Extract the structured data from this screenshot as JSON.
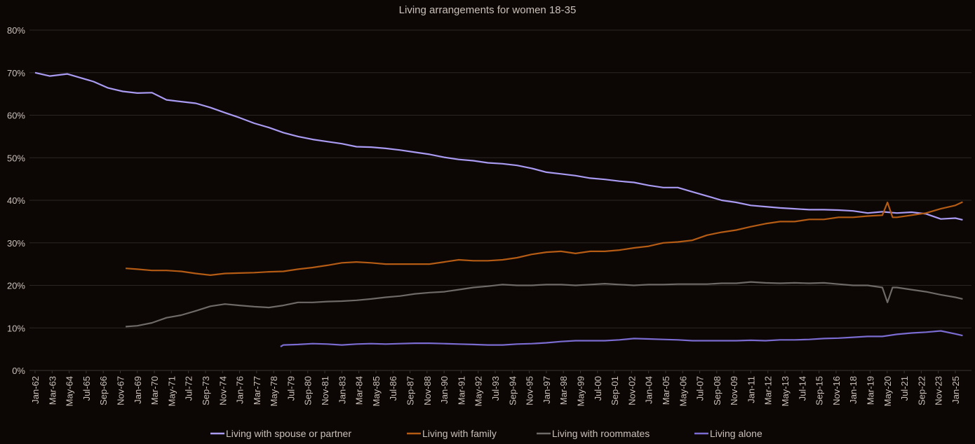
{
  "chart_data": {
    "type": "line",
    "title": "Living arrangements for women 18-35",
    "xlabel": "",
    "ylabel": "",
    "ylim": [
      0,
      80
    ],
    "yticks": [
      "0%",
      "10%",
      "20%",
      "30%",
      "40%",
      "50%",
      "60%",
      "70%",
      "80%"
    ],
    "xticks": [
      "Jan-62",
      "Mar-63",
      "May-64",
      "Jul-65",
      "Sep-66",
      "Nov-67",
      "Jan-69",
      "Mar-70",
      "May-71",
      "Jul-72",
      "Sep-73",
      "Nov-74",
      "Jan-76",
      "Mar-77",
      "May-78",
      "Jul-79",
      "Sep-80",
      "Nov-81",
      "Jan-83",
      "Mar-84",
      "May-85",
      "Jul-86",
      "Sep-87",
      "Nov-88",
      "Jan-90",
      "Mar-91",
      "May-92",
      "Jul-93",
      "Sep-94",
      "Nov-95",
      "Jan-97",
      "Mar-98",
      "May-99",
      "Jul-00",
      "Sep-01",
      "Nov-02",
      "Jan-04",
      "Mar-05",
      "May-06",
      "Jul-07",
      "Sep-08",
      "Nov-09",
      "Jan-11",
      "Mar-12",
      "May-13",
      "Jul-14",
      "Sep-15",
      "Nov-16",
      "Jan-18",
      "Mar-19",
      "May-20",
      "Jul-21",
      "Sep-22",
      "Nov-23",
      "Jan-25"
    ],
    "grid": true,
    "legend_position": "bottom",
    "series": [
      {
        "name": "Living with spouse or partner",
        "color": "#a99bf2",
        "points": [
          [
            1962,
            70
          ],
          [
            1963,
            69.2
          ],
          [
            1964.2,
            69.7
          ],
          [
            1965,
            68.9
          ],
          [
            1966,
            67.9
          ],
          [
            1967,
            66.4
          ],
          [
            1968,
            65.6
          ],
          [
            1969,
            65.2
          ],
          [
            1970,
            65.3
          ],
          [
            1971,
            63.6
          ],
          [
            1972,
            63.2
          ],
          [
            1973,
            62.8
          ],
          [
            1974,
            61.8
          ],
          [
            1975,
            60.6
          ],
          [
            1976,
            59.4
          ],
          [
            1977,
            58.1
          ],
          [
            1978,
            57.1
          ],
          [
            1979,
            55.9
          ],
          [
            1980,
            55
          ],
          [
            1981,
            54.3
          ],
          [
            1982,
            53.8
          ],
          [
            1983,
            53.3
          ],
          [
            1984,
            52.6
          ],
          [
            1985,
            52.5
          ],
          [
            1986,
            52.2
          ],
          [
            1987,
            51.8
          ],
          [
            1988,
            51.3
          ],
          [
            1989,
            50.8
          ],
          [
            1990,
            50.1
          ],
          [
            1991,
            49.6
          ],
          [
            1992,
            49.3
          ],
          [
            1993,
            48.8
          ],
          [
            1994,
            48.6
          ],
          [
            1995,
            48.2
          ],
          [
            1996,
            47.5
          ],
          [
            1997,
            46.6
          ],
          [
            1998,
            46.2
          ],
          [
            1999,
            45.8
          ],
          [
            2000,
            45.2
          ],
          [
            2001,
            44.9
          ],
          [
            2002,
            44.5
          ],
          [
            2003,
            44.2
          ],
          [
            2004,
            43.5
          ],
          [
            2005,
            43
          ],
          [
            2006,
            43
          ],
          [
            2007,
            42
          ],
          [
            2008,
            41
          ],
          [
            2009,
            40
          ],
          [
            2010,
            39.5
          ],
          [
            2011,
            38.8
          ],
          [
            2012,
            38.5
          ],
          [
            2013,
            38.2
          ],
          [
            2014,
            38
          ],
          [
            2015,
            37.8
          ],
          [
            2016,
            37.8
          ],
          [
            2017,
            37.7
          ],
          [
            2018,
            37.5
          ],
          [
            2019,
            37
          ],
          [
            2020,
            37.3
          ],
          [
            2021,
            37
          ],
          [
            2022,
            37.2
          ],
          [
            2023,
            36.8
          ],
          [
            2024,
            35.6
          ],
          [
            2025,
            35.8
          ],
          [
            2025.5,
            35.4
          ]
        ]
      },
      {
        "name": "Living with family",
        "color": "#b45b14",
        "points": [
          [
            1968.2,
            24
          ],
          [
            1969,
            23.8
          ],
          [
            1970,
            23.5
          ],
          [
            1971,
            23.5
          ],
          [
            1972,
            23.3
          ],
          [
            1973,
            22.8
          ],
          [
            1974,
            22.4
          ],
          [
            1975,
            22.8
          ],
          [
            1976,
            22.9
          ],
          [
            1977,
            23
          ],
          [
            1978,
            23.2
          ],
          [
            1979,
            23.3
          ],
          [
            1980,
            23.8
          ],
          [
            1981,
            24.2
          ],
          [
            1982,
            24.7
          ],
          [
            1983,
            25.3
          ],
          [
            1984,
            25.5
          ],
          [
            1985,
            25.3
          ],
          [
            1986,
            25
          ],
          [
            1987,
            25
          ],
          [
            1988,
            25
          ],
          [
            1989,
            25
          ],
          [
            1990,
            25.5
          ],
          [
            1991,
            26
          ],
          [
            1992,
            25.8
          ],
          [
            1993,
            25.8
          ],
          [
            1994,
            26
          ],
          [
            1995,
            26.5
          ],
          [
            1996,
            27.3
          ],
          [
            1997,
            27.8
          ],
          [
            1998,
            28
          ],
          [
            1999,
            27.5
          ],
          [
            2000,
            28
          ],
          [
            2001,
            28
          ],
          [
            2002,
            28.3
          ],
          [
            2003,
            28.8
          ],
          [
            2004,
            29.2
          ],
          [
            2005,
            30
          ],
          [
            2006,
            30.2
          ],
          [
            2007,
            30.6
          ],
          [
            2008,
            31.8
          ],
          [
            2009,
            32.5
          ],
          [
            2010,
            33
          ],
          [
            2011,
            33.8
          ],
          [
            2012,
            34.5
          ],
          [
            2013,
            35
          ],
          [
            2014,
            35
          ],
          [
            2015,
            35.5
          ],
          [
            2016,
            35.5
          ],
          [
            2017,
            36
          ],
          [
            2018,
            36
          ],
          [
            2019,
            36.3
          ],
          [
            2020,
            36.5
          ],
          [
            2020.35,
            39.5
          ],
          [
            2020.7,
            36
          ],
          [
            2021,
            36
          ],
          [
            2022,
            36.5
          ],
          [
            2023,
            37
          ],
          [
            2024,
            38
          ],
          [
            2025,
            38.8
          ],
          [
            2025.5,
            39.6
          ]
        ]
      },
      {
        "name": "Living with roommates",
        "color": "#6e6a68",
        "points": [
          [
            1968.2,
            10.3
          ],
          [
            1969,
            10.5
          ],
          [
            1970,
            11.2
          ],
          [
            1971,
            12.4
          ],
          [
            1972,
            13
          ],
          [
            1973,
            14
          ],
          [
            1974,
            15.1
          ],
          [
            1975,
            15.6
          ],
          [
            1976,
            15.3
          ],
          [
            1977,
            15
          ],
          [
            1978,
            14.8
          ],
          [
            1979,
            15.3
          ],
          [
            1980,
            16
          ],
          [
            1981,
            16
          ],
          [
            1982,
            16.2
          ],
          [
            1983,
            16.3
          ],
          [
            1984,
            16.5
          ],
          [
            1985,
            16.8
          ],
          [
            1986,
            17.2
          ],
          [
            1987,
            17.5
          ],
          [
            1988,
            18
          ],
          [
            1989,
            18.3
          ],
          [
            1990,
            18.5
          ],
          [
            1991,
            19
          ],
          [
            1992,
            19.5
          ],
          [
            1993,
            19.8
          ],
          [
            1994,
            20.2
          ],
          [
            1995,
            20
          ],
          [
            1996,
            20
          ],
          [
            1997,
            20.2
          ],
          [
            1998,
            20.2
          ],
          [
            1999,
            20
          ],
          [
            2000,
            20.2
          ],
          [
            2001,
            20.4
          ],
          [
            2002,
            20.2
          ],
          [
            2003,
            20
          ],
          [
            2004,
            20.2
          ],
          [
            2005,
            20.2
          ],
          [
            2006,
            20.3
          ],
          [
            2007,
            20.3
          ],
          [
            2008,
            20.3
          ],
          [
            2009,
            20.5
          ],
          [
            2010,
            20.5
          ],
          [
            2011,
            20.8
          ],
          [
            2012,
            20.6
          ],
          [
            2013,
            20.5
          ],
          [
            2014,
            20.6
          ],
          [
            2015,
            20.5
          ],
          [
            2016,
            20.6
          ],
          [
            2017,
            20.3
          ],
          [
            2018,
            20
          ],
          [
            2019,
            20
          ],
          [
            2020,
            19.5
          ],
          [
            2020.35,
            16
          ],
          [
            2020.7,
            19.5
          ],
          [
            2021,
            19.5
          ],
          [
            2022,
            19
          ],
          [
            2023,
            18.5
          ],
          [
            2024,
            17.8
          ],
          [
            2025,
            17.2
          ],
          [
            2025.5,
            16.8
          ]
        ]
      },
      {
        "name": "Living alone",
        "color": "#7a6cd0",
        "points": [
          [
            1978.8,
            5.6
          ],
          [
            1979,
            6
          ],
          [
            1980,
            6.1
          ],
          [
            1981,
            6.3
          ],
          [
            1982,
            6.2
          ],
          [
            1983,
            6
          ],
          [
            1984,
            6.2
          ],
          [
            1985,
            6.3
          ],
          [
            1986,
            6.2
          ],
          [
            1987,
            6.3
          ],
          [
            1988,
            6.4
          ],
          [
            1989,
            6.4
          ],
          [
            1990,
            6.3
          ],
          [
            1991,
            6.2
          ],
          [
            1992,
            6.1
          ],
          [
            1993,
            6
          ],
          [
            1994,
            6
          ],
          [
            1995,
            6.2
          ],
          [
            1996,
            6.3
          ],
          [
            1997,
            6.5
          ],
          [
            1998,
            6.8
          ],
          [
            1999,
            7
          ],
          [
            2000,
            7
          ],
          [
            2001,
            7
          ],
          [
            2002,
            7.2
          ],
          [
            2003,
            7.5
          ],
          [
            2004,
            7.4
          ],
          [
            2005,
            7.3
          ],
          [
            2006,
            7.2
          ],
          [
            2007,
            7
          ],
          [
            2008,
            7
          ],
          [
            2009,
            7
          ],
          [
            2010,
            7
          ],
          [
            2011,
            7.1
          ],
          [
            2012,
            7
          ],
          [
            2013,
            7.2
          ],
          [
            2014,
            7.2
          ],
          [
            2015,
            7.3
          ],
          [
            2016,
            7.5
          ],
          [
            2017,
            7.6
          ],
          [
            2018,
            7.8
          ],
          [
            2019,
            8
          ],
          [
            2020,
            8
          ],
          [
            2021,
            8.5
          ],
          [
            2022,
            8.8
          ],
          [
            2023,
            9
          ],
          [
            2024,
            9.3
          ],
          [
            2025,
            8.6
          ],
          [
            2025.5,
            8.2
          ]
        ]
      }
    ]
  },
  "colors": {
    "background": "#0c0605",
    "grid": "#2b2624",
    "text": "#c9c1b8"
  }
}
